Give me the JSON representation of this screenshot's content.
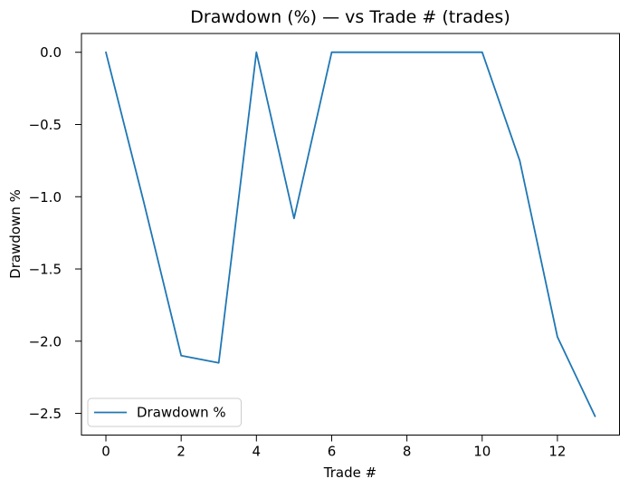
{
  "chart_data": {
    "type": "line",
    "title": "Drawdown (%) — vs Trade # (trades)",
    "xlabel": "Trade #",
    "ylabel": "Drawdown %",
    "grid": false,
    "background": "#ffffff",
    "axes_color": "#000000",
    "series": [
      {
        "name": "Drawdown %",
        "color": "#1f77b4",
        "x": [
          0,
          1,
          2,
          3,
          4,
          5,
          6,
          7,
          8,
          9,
          10,
          11,
          12,
          13
        ],
        "y": [
          0.0,
          -1.03,
          -2.1,
          -2.15,
          0.0,
          -1.15,
          0.0,
          0.0,
          0.0,
          0.0,
          0.0,
          -0.75,
          -1.97,
          -2.52
        ]
      }
    ],
    "xlim": [
      -0.65,
      13.65
    ],
    "ylim": [
      -2.65,
      0.13
    ],
    "xticks": [
      {
        "v": 0,
        "label": "0"
      },
      {
        "v": 2,
        "label": "2"
      },
      {
        "v": 4,
        "label": "4"
      },
      {
        "v": 6,
        "label": "6"
      },
      {
        "v": 8,
        "label": "8"
      },
      {
        "v": 10,
        "label": "10"
      },
      {
        "v": 12,
        "label": "12"
      }
    ],
    "yticks": [
      {
        "v": 0,
        "label": "0.0"
      },
      {
        "v": -0.5,
        "label": "−0.5"
      },
      {
        "v": -1,
        "label": "−1.0"
      },
      {
        "v": -1.5,
        "label": "−1.5"
      },
      {
        "v": -2,
        "label": "−2.0"
      },
      {
        "v": -2.5,
        "label": "−2.5"
      }
    ],
    "legend": {
      "position": "lower-left",
      "entries": [
        "Drawdown %"
      ]
    }
  }
}
